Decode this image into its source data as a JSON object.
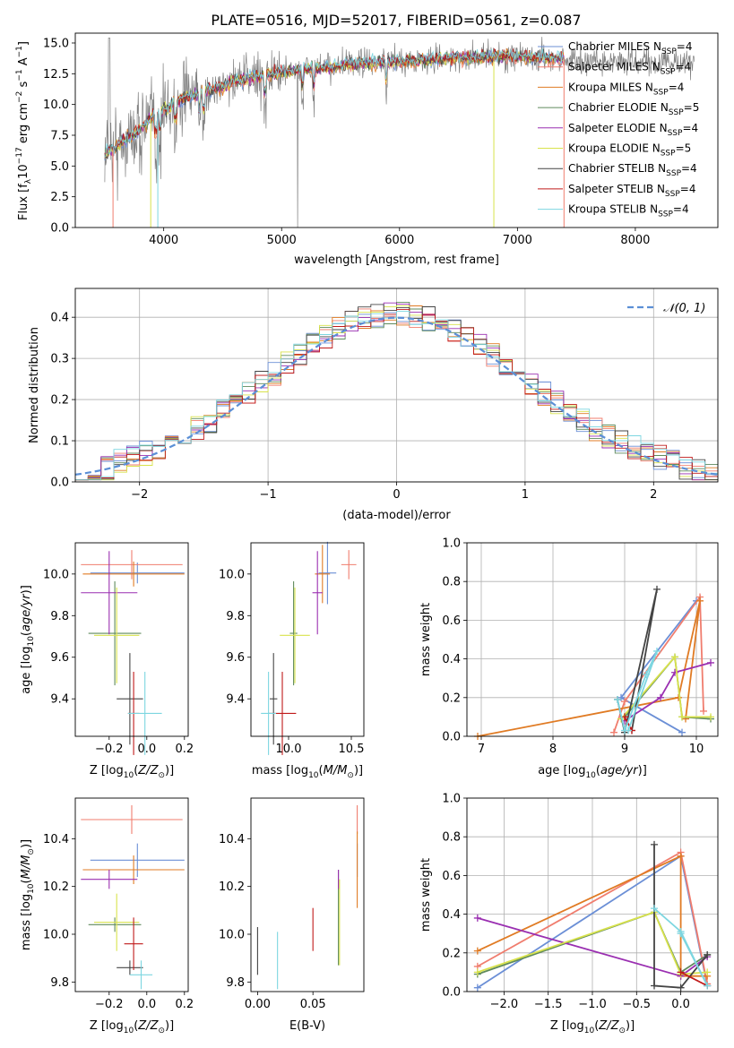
{
  "title": "PLATE=0516, MJD=52017, FIBERID=0561, z=0.087",
  "colors": {
    "Chabrier MILES": "#6b8fd6",
    "Salpeter MILES": "#f07d6e",
    "Kroupa MILES": "#e07b24",
    "Chabrier ELODIE": "#5f8a5c",
    "Salpeter ELODIE": "#9a2fb1",
    "Kroupa ELODIE": "#d8e24c",
    "Chabrier STELIB": "#444444",
    "Salpeter STELIB": "#c01a1a",
    "Kroupa STELIB": "#7dd6e0",
    "data": "#808080",
    "normal_curve": "#5b8fd6"
  },
  "chart_data": [
    {
      "id": "spectrum",
      "type": "line",
      "xlabel": "wavelength [Angstrom, rest frame]",
      "ylabel": "Flux [f_λ10^{-17} erg cm^{-2} s^{-1} A^{-1}]",
      "xlim": [
        3250,
        8700
      ],
      "ylim": [
        0,
        15.8
      ],
      "xticks": [
        4000,
        5000,
        6000,
        7000,
        8000
      ],
      "xtick_labels": [
        "4000",
        "5000",
        "6000",
        "7000",
        "8000"
      ],
      "yticks": [
        0,
        2.5,
        5,
        7.5,
        10,
        12.5,
        15
      ],
      "ytick_labels": [
        "0.0",
        "2.5",
        "5.0",
        "7.5",
        "10.0",
        "12.5",
        "15.0"
      ],
      "grid": false,
      "legend_position": "right",
      "legend": [
        {
          "name": "Chabrier MILES",
          "nssp": "4"
        },
        {
          "name": "Salpeter MILES",
          "nssp": "4"
        },
        {
          "name": "Kroupa MILES",
          "nssp": "4"
        },
        {
          "name": "Chabrier ELODIE",
          "nssp": "5"
        },
        {
          "name": "Salpeter ELODIE",
          "nssp": "4"
        },
        {
          "name": "Kroupa ELODIE",
          "nssp": "5"
        },
        {
          "name": "Chabrier STELIB",
          "nssp": "4"
        },
        {
          "name": "Salpeter STELIB",
          "nssp": "4"
        },
        {
          "name": "Kroupa STELIB",
          "nssp": "4"
        }
      ],
      "continuum": {
        "x": [
          3500,
          3600,
          3700,
          3800,
          3900,
          4000,
          4100,
          4200,
          4300,
          4400,
          4500,
          4600,
          4700,
          4800,
          4900,
          5000,
          5200,
          5400,
          5600,
          5800,
          6000,
          6200,
          6400,
          6600,
          6800,
          7000,
          7200,
          7400
        ],
        "y": [
          6.0,
          6.6,
          7.3,
          8.0,
          8.9,
          9.5,
          10.2,
          10.6,
          10.9,
          11.2,
          11.5,
          11.9,
          12.1,
          12.3,
          12.5,
          12.6,
          12.9,
          13.0,
          13.3,
          13.4,
          13.5,
          13.6,
          13.7,
          13.8,
          13.9,
          13.9,
          13.8,
          13.7
        ]
      },
      "model_xmax": 7400,
      "data_xmax": 8500
    },
    {
      "id": "residual_hist",
      "type": "histogram",
      "xlabel": "(data-model)/error",
      "ylabel": "Normed distribution",
      "xlim": [
        -2.5,
        2.5
      ],
      "ylim": [
        0,
        0.47
      ],
      "xticks": [
        -2,
        -1,
        0,
        1,
        2
      ],
      "xtick_labels": [
        "−2",
        "−1",
        "0",
        "1",
        "2"
      ],
      "yticks": [
        0,
        0.1,
        0.2,
        0.3,
        0.4
      ],
      "ytick_labels": [
        "0.0",
        "0.1",
        "0.2",
        "0.3",
        "0.4"
      ],
      "grid": true,
      "legend_position": "top-right",
      "legend": [
        "𝒩(0, 1)"
      ],
      "bin_width": 0.1
    },
    {
      "id": "age_vs_Z",
      "type": "scatter",
      "xlabel": "Z [log10(Z/Z⊙)]",
      "ylabel": "age [log10(age/yr)]",
      "xlim": [
        -0.38,
        0.22
      ],
      "ylim": [
        9.22,
        10.15
      ],
      "xticks": [
        -0.2,
        0.0,
        0.2
      ],
      "xtick_labels": [
        "−0.2",
        "0.0",
        "0.2"
      ],
      "yticks": [
        9.4,
        9.6,
        9.8,
        10.0
      ],
      "ytick_labels": [
        "9.4",
        "9.6",
        "9.8",
        "10.0"
      ],
      "grid": false,
      "points": [
        {
          "model": "Chabrier MILES",
          "x": -0.05,
          "xerr": 0.25,
          "y": 10.005,
          "yerr": 0.05
        },
        {
          "model": "Salpeter MILES",
          "x": -0.08,
          "xerr": 0.27,
          "y": 10.045,
          "yerr": 0.07
        },
        {
          "model": "Kroupa MILES",
          "x": -0.07,
          "xerr": 0.27,
          "y": 10.0,
          "yerr": 0.06
        },
        {
          "model": "Chabrier ELODIE",
          "x": -0.17,
          "xerr": 0.14,
          "y": 9.715,
          "yerr": 0.25
        },
        {
          "model": "Salpeter ELODIE",
          "x": -0.2,
          "xerr": 0.15,
          "y": 9.91,
          "yerr": 0.2
        },
        {
          "model": "Kroupa ELODIE",
          "x": -0.16,
          "xerr": 0.12,
          "y": 9.705,
          "yerr": 0.23
        },
        {
          "model": "Chabrier STELIB",
          "x": -0.09,
          "xerr": 0.07,
          "y": 9.4,
          "yerr": 0.22
        },
        {
          "model": "Salpeter STELIB",
          "x": -0.07,
          "xerr": 0.03,
          "y": 9.33,
          "yerr": 0.2
        },
        {
          "model": "Kroupa STELIB",
          "x": -0.01,
          "xerr": 0.09,
          "y": 9.33,
          "yerr": 0.2
        }
      ]
    },
    {
      "id": "age_vs_mass",
      "type": "scatter",
      "xlabel": "mass [log10(M/M⊙)]",
      "ylabel": "",
      "xlim": [
        9.7,
        10.6
      ],
      "ylim": [
        9.22,
        10.15
      ],
      "xticks": [
        10.0,
        10.5
      ],
      "xtick_labels": [
        "10.0",
        "10.5"
      ],
      "yticks": [
        9.4,
        9.6,
        9.8,
        10.0
      ],
      "ytick_labels": [
        "9.4",
        "9.6",
        "9.8",
        "10.0"
      ],
      "grid": false,
      "points": [
        {
          "model": "Chabrier MILES",
          "x": 10.31,
          "xerr": 0.07,
          "y": 10.005,
          "yerr": 0.15
        },
        {
          "model": "Salpeter MILES",
          "x": 10.48,
          "xerr": 0.06,
          "y": 10.045,
          "yerr": 0.07
        },
        {
          "model": "Kroupa MILES",
          "x": 10.27,
          "xerr": 0.06,
          "y": 10.0,
          "yerr": 0.14
        },
        {
          "model": "Chabrier ELODIE",
          "x": 10.04,
          "xerr": 0.03,
          "y": 9.715,
          "yerr": 0.25
        },
        {
          "model": "Salpeter ELODIE",
          "x": 10.23,
          "xerr": 0.04,
          "y": 9.91,
          "yerr": 0.2
        },
        {
          "model": "Kroupa ELODIE",
          "x": 10.05,
          "xerr": 0.12,
          "y": 9.705,
          "yerr": 0.23
        },
        {
          "model": "Chabrier STELIB",
          "x": 9.88,
          "xerr": 0.03,
          "y": 9.4,
          "yerr": 0.22
        },
        {
          "model": "Salpeter STELIB",
          "x": 9.95,
          "xerr": 0.11,
          "y": 9.33,
          "yerr": 0.2
        },
        {
          "model": "Kroupa STELIB",
          "x": 9.84,
          "xerr": 0.06,
          "y": 9.33,
          "yerr": 0.2
        }
      ]
    },
    {
      "id": "weight_vs_age",
      "type": "line",
      "xlabel": "age [log10(age/yr)]",
      "ylabel": "mass weight",
      "xlim": [
        6.8,
        10.3
      ],
      "ylim": [
        0,
        1.0
      ],
      "xticks": [
        7,
        8,
        9,
        10
      ],
      "xtick_labels": [
        "7",
        "8",
        "9",
        "10"
      ],
      "yticks": [
        0,
        0.2,
        0.4,
        0.6,
        0.8,
        1.0
      ],
      "ytick_labels": [
        "0.0",
        "0.2",
        "0.4",
        "0.6",
        "0.8",
        "1.0"
      ],
      "grid": true,
      "series": [
        {
          "model": "Chabrier MILES",
          "x": [
            9.8,
            8.95,
            10.0
          ],
          "y": [
            0.02,
            0.2,
            0.7
          ]
        },
        {
          "model": "Salpeter MILES",
          "x": [
            8.85,
            9.0,
            10.05,
            10.1
          ],
          "y": [
            0.02,
            0.18,
            0.72,
            0.13
          ]
        },
        {
          "model": "Kroupa MILES",
          "x": [
            6.95,
            9.75,
            10.05,
            9.85
          ],
          "y": [
            0.0,
            0.2,
            0.7,
            0.09
          ]
        },
        {
          "model": "Chabrier ELODIE",
          "x": [
            9.0,
            9.7,
            9.8,
            10.2
          ],
          "y": [
            0.1,
            0.41,
            0.1,
            0.09
          ]
        },
        {
          "model": "Salpeter ELODIE",
          "x": [
            9.0,
            9.5,
            9.7,
            10.2
          ],
          "y": [
            0.08,
            0.2,
            0.33,
            0.38
          ]
        },
        {
          "model": "Kroupa ELODIE",
          "x": [
            8.95,
            9.7,
            9.8,
            10.2
          ],
          "y": [
            0.09,
            0.41,
            0.1,
            0.1
          ]
        },
        {
          "model": "Chabrier STELIB",
          "x": [
            8.9,
            9.0,
            9.45,
            9.1
          ],
          "y": [
            0.19,
            0.02,
            0.76,
            0.03
          ]
        },
        {
          "model": "Salpeter STELIB",
          "x": [
            9.0,
            9.1
          ],
          "y": [
            0.1,
            0.03
          ]
        },
        {
          "model": "Kroupa STELIB",
          "x": [
            8.9,
            9.0,
            9.3,
            9.45,
            9.05
          ],
          "y": [
            0.19,
            0.03,
            0.32,
            0.44,
            0.03
          ]
        }
      ]
    },
    {
      "id": "mass_vs_Z",
      "type": "scatter",
      "xlabel": "Z [log10(Z/Z⊙)]",
      "ylabel": "mass [log10(M/M⊙)]",
      "xlim": [
        -0.38,
        0.22
      ],
      "ylim": [
        9.76,
        10.57
      ],
      "xticks": [
        -0.2,
        0.0,
        0.2
      ],
      "xtick_labels": [
        "−0.2",
        "0.0",
        "0.2"
      ],
      "yticks": [
        9.8,
        10.0,
        10.2,
        10.4
      ],
      "ytick_labels": [
        "9.8",
        "10.0",
        "10.2",
        "10.4"
      ],
      "grid": false,
      "points": [
        {
          "model": "Chabrier MILES",
          "x": -0.05,
          "xerr": 0.25,
          "y": 10.31,
          "yerr": 0.07
        },
        {
          "model": "Salpeter MILES",
          "x": -0.08,
          "xerr": 0.27,
          "y": 10.48,
          "yerr": 0.06
        },
        {
          "model": "Kroupa MILES",
          "x": -0.07,
          "xerr": 0.27,
          "y": 10.27,
          "yerr": 0.06
        },
        {
          "model": "Chabrier ELODIE",
          "x": -0.17,
          "xerr": 0.14,
          "y": 10.04,
          "yerr": 0.03
        },
        {
          "model": "Salpeter ELODIE",
          "x": -0.2,
          "xerr": 0.15,
          "y": 10.23,
          "yerr": 0.04
        },
        {
          "model": "Kroupa ELODIE",
          "x": -0.16,
          "xerr": 0.12,
          "y": 10.05,
          "yerr": 0.12
        },
        {
          "model": "Chabrier STELIB",
          "x": -0.09,
          "xerr": 0.07,
          "y": 9.86,
          "yerr": 0.03
        },
        {
          "model": "Salpeter STELIB",
          "x": -0.07,
          "xerr": 0.05,
          "y": 9.96,
          "yerr": 0.11
        },
        {
          "model": "Kroupa STELIB",
          "x": -0.03,
          "xerr": 0.06,
          "y": 9.83,
          "yerr": 0.06
        }
      ]
    },
    {
      "id": "mass_vs_ebv",
      "type": "scatter",
      "xlabel": "E(B-V)",
      "ylabel": "",
      "xlim": [
        -0.006,
        0.096
      ],
      "ylim": [
        9.76,
        10.57
      ],
      "xticks": [
        0.0,
        0.05
      ],
      "xtick_labels": [
        "0.00",
        "0.05"
      ],
      "yticks": [
        9.8,
        10.0,
        10.2,
        10.4
      ],
      "ytick_labels": [
        "9.8",
        "10.0",
        "10.2",
        "10.4"
      ],
      "grid": false,
      "points": [
        {
          "model": "Chabrier MILES",
          "x": 0.09,
          "xerr": 0,
          "y": 10.31,
          "yerr": 0.07
        },
        {
          "model": "Salpeter MILES",
          "x": 0.09,
          "xerr": 0,
          "y": 10.48,
          "yerr": 0.06
        },
        {
          "model": "Kroupa MILES",
          "x": 0.09,
          "xerr": 0,
          "y": 10.27,
          "yerr": 0.16
        },
        {
          "model": "Chabrier ELODIE",
          "x": 0.073,
          "xerr": 0,
          "y": 10.07,
          "yerr": 0.2
        },
        {
          "model": "Salpeter ELODIE",
          "x": 0.073,
          "xerr": 0,
          "y": 10.23,
          "yerr": 0.04
        },
        {
          "model": "Kroupa ELODIE",
          "x": 0.074,
          "xerr": 0,
          "y": 10.05,
          "yerr": 0.18
        },
        {
          "model": "Chabrier STELIB",
          "x": 0.0,
          "xerr": 0,
          "y": 9.93,
          "yerr": 0.1
        },
        {
          "model": "Salpeter STELIB",
          "x": 0.05,
          "xerr": 0,
          "y": 10.02,
          "yerr": 0.09
        },
        {
          "model": "Kroupa STELIB",
          "x": 0.018,
          "xerr": 0,
          "y": 9.89,
          "yerr": 0.12
        }
      ]
    },
    {
      "id": "weight_vs_Z",
      "type": "line",
      "xlabel": "Z [log10(Z/Z⊙)]",
      "ylabel": "mass weight",
      "xlim": [
        -2.42,
        0.42
      ],
      "ylim": [
        0,
        1.0
      ],
      "xticks": [
        -2.0,
        -1.5,
        -1.0,
        -0.5,
        0.0
      ],
      "xtick_labels": [
        "−2.0",
        "−1.5",
        "−1.0",
        "−0.5",
        "0.0"
      ],
      "yticks": [
        0,
        0.2,
        0.4,
        0.6,
        0.8,
        1.0
      ],
      "ytick_labels": [
        "0.0",
        "0.2",
        "0.4",
        "0.6",
        "0.8",
        "1.0"
      ],
      "grid": true,
      "series": [
        {
          "model": "Chabrier MILES",
          "x": [
            -2.3,
            0.0,
            0.3
          ],
          "y": [
            0.02,
            0.7,
            0.03
          ]
        },
        {
          "model": "Salpeter MILES",
          "x": [
            -2.3,
            0.0,
            0.3
          ],
          "y": [
            0.13,
            0.72,
            0.04
          ]
        },
        {
          "model": "Kroupa MILES",
          "x": [
            -2.3,
            0.0,
            0.0,
            0.3
          ],
          "y": [
            0.21,
            0.7,
            0.08,
            0.08
          ]
        },
        {
          "model": "Chabrier ELODIE",
          "x": [
            -2.3,
            -0.3,
            0.0,
            0.3
          ],
          "y": [
            0.09,
            0.41,
            0.1,
            0.19
          ]
        },
        {
          "model": "Salpeter ELODIE",
          "x": [
            -2.3,
            0.0,
            0.3
          ],
          "y": [
            0.38,
            0.08,
            0.18
          ]
        },
        {
          "model": "Kroupa ELODIE",
          "x": [
            -2.3,
            -0.3,
            0.0,
            0.3
          ],
          "y": [
            0.1,
            0.41,
            0.09,
            0.1
          ]
        },
        {
          "model": "Chabrier STELIB",
          "x": [
            -0.3,
            -0.3,
            0.0,
            0.3
          ],
          "y": [
            0.76,
            0.03,
            0.02,
            0.19
          ]
        },
        {
          "model": "Salpeter STELIB",
          "x": [
            0.0,
            0.3
          ],
          "y": [
            0.1,
            0.03
          ]
        },
        {
          "model": "Kroupa STELIB",
          "x": [
            -0.3,
            0.0,
            0.3,
            0.0
          ],
          "y": [
            0.43,
            0.31,
            0.03,
            0.3
          ]
        }
      ]
    }
  ]
}
